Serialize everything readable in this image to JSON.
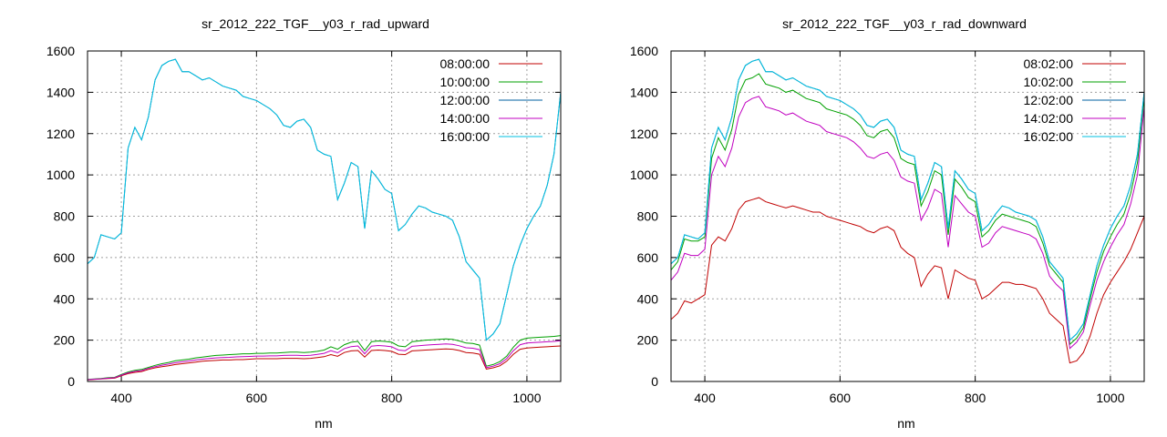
{
  "chart_data": [
    {
      "type": "line",
      "title": "sr_2012_222_TGF__y03_r_rad_upward",
      "xlabel": "nm",
      "ylabel": "",
      "xlim": [
        350,
        1050
      ],
      "ylim": [
        0,
        1600
      ],
      "xticks": [
        400,
        600,
        800,
        1000
      ],
      "yticks": [
        0,
        200,
        400,
        600,
        800,
        1000,
        1200,
        1400,
        1600
      ],
      "grid": true,
      "legend_position": "top-right",
      "x": [
        350,
        360,
        370,
        380,
        390,
        400,
        410,
        420,
        430,
        440,
        450,
        460,
        470,
        480,
        490,
        500,
        510,
        520,
        530,
        540,
        550,
        560,
        570,
        580,
        590,
        600,
        610,
        620,
        630,
        640,
        650,
        660,
        670,
        680,
        690,
        700,
        710,
        720,
        730,
        740,
        750,
        760,
        770,
        780,
        790,
        800,
        810,
        820,
        830,
        840,
        850,
        860,
        870,
        880,
        890,
        900,
        910,
        920,
        930,
        940,
        950,
        960,
        970,
        980,
        990,
        1000,
        1010,
        1020,
        1030,
        1040,
        1050
      ],
      "series": [
        {
          "name": "08:00:00",
          "color": "#c00000",
          "values": [
            8,
            10,
            12,
            14,
            16,
            28,
            38,
            44,
            48,
            58,
            66,
            72,
            76,
            82,
            86,
            90,
            94,
            98,
            100,
            102,
            104,
            104,
            106,
            106,
            108,
            110,
            110,
            110,
            110,
            112,
            112,
            112,
            110,
            112,
            116,
            120,
            130,
            122,
            140,
            148,
            150,
            118,
            150,
            152,
            150,
            146,
            132,
            130,
            148,
            150,
            152,
            154,
            156,
            158,
            156,
            150,
            140,
            138,
            132,
            60,
            66,
            76,
            98,
            132,
            156,
            162,
            164,
            166,
            168,
            170,
            172
          ]
        },
        {
          "name": "10:00:00",
          "color": "#00a000",
          "values": [
            10,
            12,
            14,
            18,
            20,
            34,
            46,
            54,
            58,
            68,
            78,
            86,
            92,
            100,
            104,
            108,
            114,
            118,
            122,
            126,
            128,
            130,
            132,
            134,
            134,
            136,
            136,
            138,
            138,
            140,
            142,
            142,
            140,
            142,
            146,
            152,
            168,
            156,
            178,
            190,
            194,
            150,
            192,
            196,
            194,
            190,
            172,
            168,
            192,
            196,
            200,
            202,
            204,
            206,
            204,
            196,
            186,
            184,
            176,
            74,
            82,
            96,
            122,
            166,
            200,
            210,
            212,
            214,
            216,
            218,
            222
          ]
        },
        {
          "name": "12:00:00",
          "color": "#0060a0",
          "values": [
            570,
            600,
            710,
            700,
            690,
            720,
            1130,
            1230,
            1170,
            1280,
            1460,
            1530,
            1550,
            1560,
            1500,
            1500,
            1480,
            1460,
            1470,
            1450,
            1430,
            1420,
            1410,
            1380,
            1370,
            1360,
            1340,
            1320,
            1290,
            1240,
            1230,
            1260,
            1270,
            1230,
            1120,
            1100,
            1090,
            880,
            960,
            1060,
            1040,
            740,
            1020,
            980,
            930,
            910,
            730,
            760,
            810,
            850,
            840,
            820,
            810,
            800,
            780,
            700,
            580,
            540,
            500,
            200,
            230,
            280,
            420,
            560,
            660,
            740,
            800,
            850,
            950,
            1100,
            1400
          ]
        },
        {
          "name": "14:00:00",
          "color": "#c000c0",
          "values": [
            9,
            11,
            13,
            16,
            18,
            31,
            42,
            49,
            53,
            63,
            72,
            79,
            84,
            91,
            95,
            99,
            104,
            108,
            111,
            114,
            116,
            117,
            119,
            120,
            121,
            123,
            123,
            124,
            124,
            126,
            127,
            127,
            125,
            127,
            131,
            136,
            149,
            139,
            159,
            169,
            172,
            134,
            171,
            174,
            172,
            168,
            152,
            149,
            170,
            173,
            176,
            178,
            180,
            182,
            180,
            173,
            163,
            161,
            154,
            67,
            74,
            86,
            110,
            149,
            178,
            186,
            188,
            190,
            192,
            194,
            197
          ]
        },
        {
          "name": "16:00:00",
          "color": "#00c0e0",
          "values": [
            570,
            600,
            710,
            700,
            690,
            720,
            1130,
            1230,
            1170,
            1280,
            1460,
            1530,
            1550,
            1560,
            1500,
            1500,
            1480,
            1460,
            1470,
            1450,
            1430,
            1420,
            1410,
            1380,
            1370,
            1360,
            1340,
            1320,
            1290,
            1240,
            1230,
            1260,
            1270,
            1230,
            1120,
            1100,
            1090,
            880,
            960,
            1060,
            1040,
            740,
            1020,
            980,
            930,
            910,
            730,
            760,
            810,
            850,
            840,
            820,
            810,
            800,
            780,
            700,
            580,
            540,
            500,
            200,
            230,
            280,
            420,
            560,
            660,
            740,
            800,
            850,
            950,
            1100,
            1400
          ]
        }
      ]
    },
    {
      "type": "line",
      "title": "sr_2012_222_TGF__y03_r_rad_downward",
      "xlabel": "nm",
      "ylabel": "",
      "xlim": [
        350,
        1050
      ],
      "ylim": [
        0,
        1600
      ],
      "xticks": [
        400,
        600,
        800,
        1000
      ],
      "yticks": [
        0,
        200,
        400,
        600,
        800,
        1000,
        1200,
        1400,
        1600
      ],
      "grid": true,
      "legend_position": "top-right",
      "x": [
        350,
        360,
        370,
        380,
        390,
        400,
        410,
        420,
        430,
        440,
        450,
        460,
        470,
        480,
        490,
        500,
        510,
        520,
        530,
        540,
        550,
        560,
        570,
        580,
        590,
        600,
        610,
        620,
        630,
        640,
        650,
        660,
        670,
        680,
        690,
        700,
        710,
        720,
        730,
        740,
        750,
        760,
        770,
        780,
        790,
        800,
        810,
        820,
        830,
        840,
        850,
        860,
        870,
        880,
        890,
        900,
        910,
        920,
        930,
        940,
        950,
        960,
        970,
        980,
        990,
        1000,
        1010,
        1020,
        1030,
        1040,
        1050
      ],
      "series": [
        {
          "name": "08:02:00",
          "color": "#c00000",
          "values": [
            300,
            330,
            390,
            380,
            400,
            420,
            660,
            700,
            680,
            740,
            830,
            870,
            880,
            890,
            870,
            860,
            850,
            840,
            850,
            840,
            830,
            820,
            820,
            800,
            790,
            780,
            770,
            760,
            750,
            730,
            720,
            740,
            750,
            730,
            650,
            620,
            600,
            460,
            520,
            560,
            550,
            400,
            540,
            520,
            500,
            490,
            400,
            420,
            450,
            480,
            480,
            470,
            470,
            460,
            450,
            400,
            330,
            300,
            270,
            90,
            100,
            140,
            220,
            330,
            420,
            480,
            530,
            580,
            640,
            720,
            800
          ]
        },
        {
          "name": "10:02:00",
          "color": "#00a000",
          "values": [
            540,
            580,
            690,
            680,
            680,
            700,
            1080,
            1180,
            1120,
            1220,
            1390,
            1460,
            1470,
            1490,
            1440,
            1430,
            1420,
            1400,
            1410,
            1390,
            1370,
            1360,
            1350,
            1320,
            1310,
            1300,
            1290,
            1270,
            1240,
            1190,
            1180,
            1210,
            1220,
            1180,
            1080,
            1060,
            1050,
            850,
            920,
            1020,
            1000,
            710,
            980,
            940,
            890,
            870,
            700,
            730,
            780,
            810,
            800,
            790,
            780,
            770,
            750,
            670,
            560,
            520,
            480,
            180,
            210,
            260,
            400,
            530,
            630,
            700,
            760,
            810,
            910,
            1060,
            1380
          ]
        },
        {
          "name": "12:02:00",
          "color": "#0060a0",
          "values": [
            570,
            600,
            710,
            700,
            690,
            720,
            1130,
            1230,
            1170,
            1280,
            1460,
            1530,
            1550,
            1560,
            1500,
            1500,
            1480,
            1460,
            1470,
            1450,
            1430,
            1420,
            1410,
            1380,
            1370,
            1360,
            1340,
            1320,
            1290,
            1240,
            1230,
            1260,
            1270,
            1230,
            1120,
            1100,
            1090,
            880,
            960,
            1060,
            1040,
            740,
            1020,
            980,
            930,
            910,
            730,
            760,
            810,
            850,
            840,
            820,
            810,
            800,
            780,
            700,
            580,
            540,
            500,
            200,
            230,
            280,
            420,
            560,
            660,
            740,
            800,
            850,
            950,
            1100,
            1400
          ]
        },
        {
          "name": "14:02:00",
          "color": "#c000c0",
          "values": [
            490,
            530,
            620,
            610,
            610,
            640,
            1000,
            1090,
            1040,
            1130,
            1280,
            1350,
            1370,
            1380,
            1330,
            1320,
            1310,
            1290,
            1300,
            1280,
            1260,
            1250,
            1240,
            1210,
            1200,
            1190,
            1180,
            1160,
            1130,
            1090,
            1080,
            1100,
            1110,
            1070,
            990,
            970,
            960,
            780,
            840,
            930,
            910,
            650,
            900,
            860,
            820,
            800,
            650,
            670,
            720,
            750,
            740,
            730,
            720,
            710,
            690,
            620,
            510,
            470,
            440,
            160,
            190,
            240,
            370,
            490,
            580,
            650,
            710,
            760,
            860,
            1000,
            1330
          ]
        },
        {
          "name": "16:02:00",
          "color": "#00c0e0",
          "values": [
            570,
            600,
            710,
            700,
            690,
            720,
            1130,
            1230,
            1170,
            1280,
            1460,
            1530,
            1550,
            1560,
            1500,
            1500,
            1480,
            1460,
            1470,
            1450,
            1430,
            1420,
            1410,
            1380,
            1370,
            1360,
            1340,
            1320,
            1290,
            1240,
            1230,
            1260,
            1270,
            1230,
            1120,
            1100,
            1090,
            880,
            960,
            1060,
            1040,
            740,
            1020,
            980,
            930,
            910,
            730,
            760,
            810,
            850,
            840,
            820,
            810,
            800,
            780,
            700,
            580,
            540,
            500,
            200,
            230,
            280,
            420,
            560,
            660,
            740,
            800,
            850,
            950,
            1100,
            1400
          ]
        }
      ]
    }
  ]
}
